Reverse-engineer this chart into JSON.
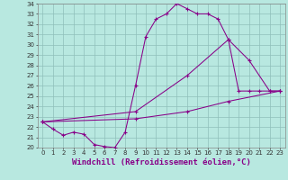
{
  "background_color": "#b8e8e0",
  "grid_color": "#8fbfba",
  "line_color": "#880088",
  "xlabel": "Windchill (Refroidissement éolien,°C)",
  "xlabel_fontsize": 6.5,
  "tick_fontsize": 5.0,
  "xlim": [
    -0.5,
    23.5
  ],
  "ylim": [
    20,
    34
  ],
  "yticks": [
    20,
    21,
    22,
    23,
    24,
    25,
    26,
    27,
    28,
    29,
    30,
    31,
    32,
    33,
    34
  ],
  "xticks": [
    0,
    1,
    2,
    3,
    4,
    5,
    6,
    7,
    8,
    9,
    10,
    11,
    12,
    13,
    14,
    15,
    16,
    17,
    18,
    19,
    20,
    21,
    22,
    23
  ],
  "line1_x": [
    0,
    1,
    2,
    3,
    4,
    5,
    6,
    7,
    8,
    9,
    10,
    11,
    12,
    13,
    14,
    15,
    16,
    17,
    18,
    19,
    20,
    21,
    22,
    23
  ],
  "line1_y": [
    22.5,
    21.8,
    21.2,
    21.5,
    21.3,
    20.3,
    20.1,
    20.0,
    21.5,
    26.0,
    30.8,
    32.5,
    33.0,
    34.0,
    33.5,
    33.0,
    33.0,
    32.5,
    30.5,
    25.5,
    25.5,
    25.5,
    25.5,
    25.5
  ],
  "line2_x": [
    0,
    9,
    14,
    18,
    20,
    22,
    23
  ],
  "line2_y": [
    22.5,
    23.5,
    27.0,
    30.5,
    28.5,
    25.5,
    25.5
  ],
  "line3_x": [
    0,
    9,
    14,
    18,
    23
  ],
  "line3_y": [
    22.5,
    22.8,
    23.5,
    24.5,
    25.5
  ]
}
